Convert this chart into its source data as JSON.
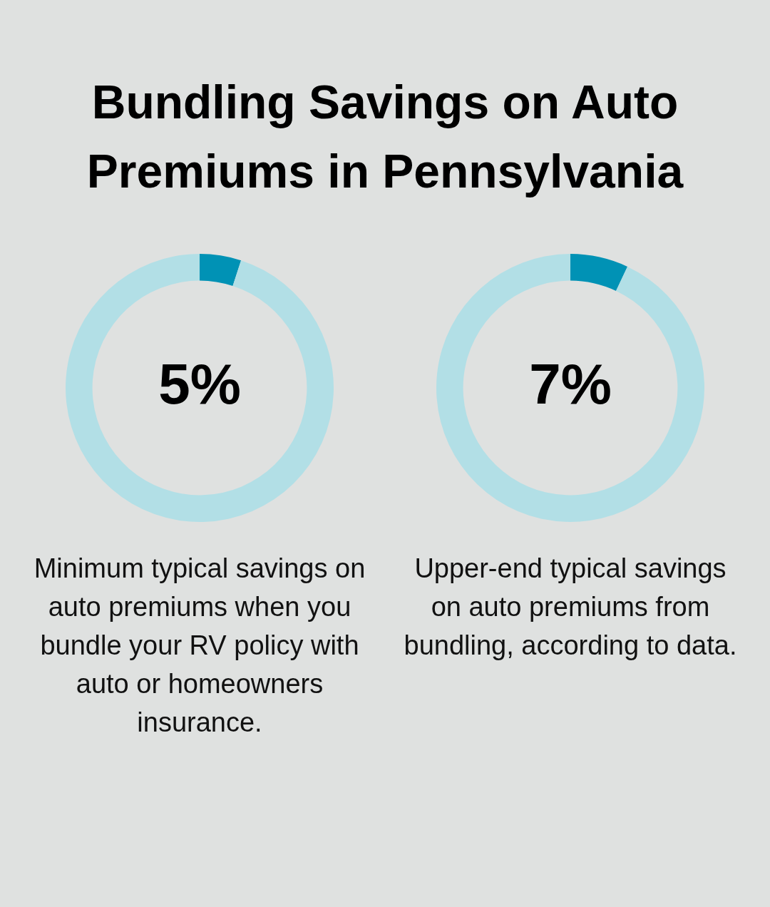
{
  "chart_data": [
    {
      "type": "donut",
      "title": "Bundling Savings on Auto Premiums in Pennsylvania",
      "categories": [
        null,
        null
      ],
      "values": [
        5,
        95
      ],
      "colors": [
        "#0092b5",
        "#b2dfe6"
      ],
      "value_labels": [
        "5%",
        null
      ],
      "annotations": [
        "Minimum typical savings on auto premiums when you bundle your RV policy with auto or homeowners insurance."
      ]
    },
    {
      "type": "donut",
      "categories": [
        null,
        null
      ],
      "values": [
        7,
        93
      ],
      "colors": [
        "#0092b5",
        "#b2dfe6"
      ],
      "value_labels": [
        "7%",
        null
      ],
      "annotations": [
        "Upper-end typical savings on auto premiums from bundling, according to data."
      ]
    }
  ]
}
